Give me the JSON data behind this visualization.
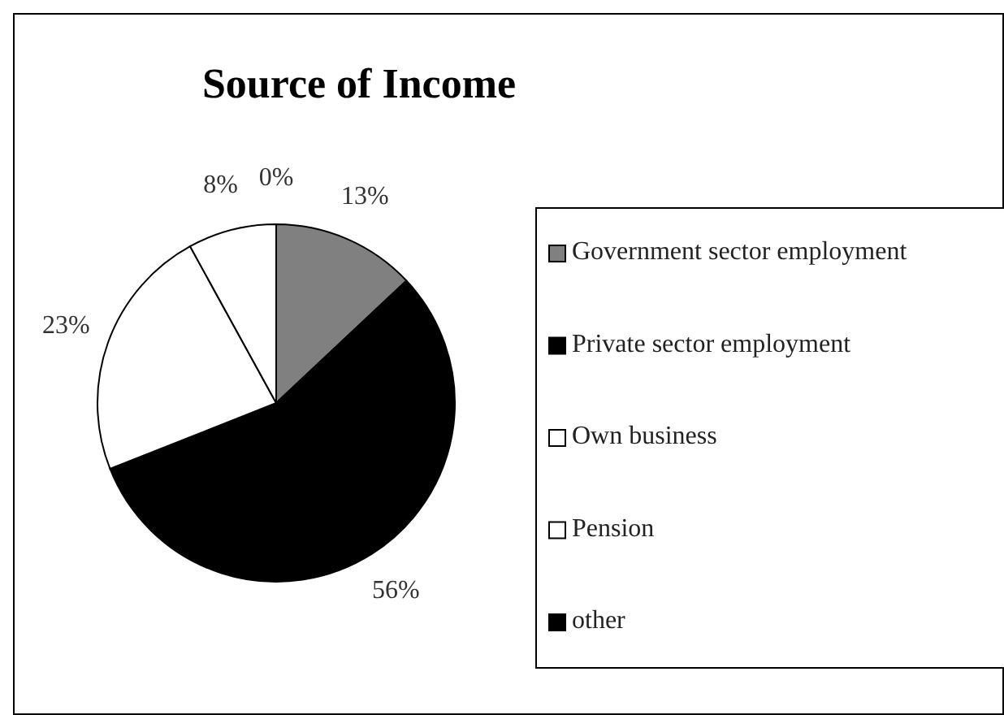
{
  "chart_data": {
    "type": "pie",
    "title": "Source of Income",
    "categories": [
      "Government sector employment",
      "Private sector employment",
      "Own business",
      "Pension",
      "other"
    ],
    "values": [
      13,
      56,
      23,
      8,
      0
    ],
    "colors": [
      "#808080",
      "#000000",
      "#ffffff",
      "#ffffff",
      "#000000"
    ],
    "value_labels": [
      "13%",
      "56%",
      "23%",
      "8%",
      "0%"
    ],
    "legend": "right"
  }
}
